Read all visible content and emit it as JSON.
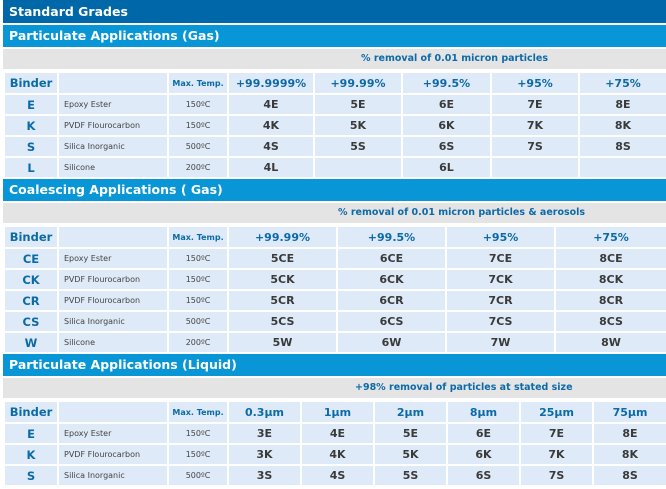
{
  "title": "Standard Grades",
  "sections": [
    {
      "name": "Particulate Applications (Gas)",
      "caption": "% removal of 0.01 micron particles",
      "headers": {
        "binder": "Binder",
        "description": "",
        "temp": "Max. Temp.",
        "columns": [
          "+99.9999%",
          "+99.99%",
          "+99.5%",
          "+95%",
          "+75%"
        ]
      },
      "rows": [
        {
          "binder": "E",
          "description": "Epoxy Ester",
          "temp": "150ºC",
          "grades": [
            "4E",
            "5E",
            "6E",
            "7E",
            "8E"
          ]
        },
        {
          "binder": "K",
          "description": "PVDF Flourocarbon",
          "temp": "150ºC",
          "grades": [
            "4K",
            "5K",
            "6K",
            "7K",
            "8K"
          ]
        },
        {
          "binder": "S",
          "description": "Silica Inorganic",
          "temp": "500ºC",
          "grades": [
            "4S",
            "5S",
            "6S",
            "7S",
            "8S"
          ]
        },
        {
          "binder": "L",
          "description": "Silicone",
          "temp": "200ºC",
          "grades": [
            "4L",
            "",
            "6L",
            "",
            ""
          ]
        }
      ]
    },
    {
      "name": "Coalescing Applications ( Gas)",
      "caption": "% removal of 0.01 micron particles & aerosols",
      "headers": {
        "binder": "Binder",
        "description": "",
        "temp": "Max. Temp.",
        "columns": [
          "+99.99%",
          "+99.5%",
          "+95%",
          "+75%"
        ]
      },
      "rows": [
        {
          "binder": "CE",
          "description": "Epoxy Ester",
          "temp": "150ºC",
          "grades": [
            "5CE",
            "6CE",
            "7CE",
            "8CE"
          ]
        },
        {
          "binder": "CK",
          "description": "PVDF Flourocarbon",
          "temp": "150ºC",
          "grades": [
            "5CK",
            "6CK",
            "7CK",
            "8CK"
          ]
        },
        {
          "binder": "CR",
          "description": "PVDF Flourocarbon",
          "temp": "150ºC",
          "grades": [
            "5CR",
            "6CR",
            "7CR",
            "8CR"
          ]
        },
        {
          "binder": "CS",
          "description": "Silica Inorganic",
          "temp": "500ºC",
          "grades": [
            "5CS",
            "6CS",
            "7CS",
            "8CS"
          ]
        },
        {
          "binder": "W",
          "description": "Silicone",
          "temp": "200ºC",
          "grades": [
            "5W",
            "6W",
            "7W",
            "8W"
          ]
        }
      ]
    },
    {
      "name": "Particulate Applications (Liquid)",
      "caption": "+98% removal of particles at stated size",
      "headers": {
        "binder": "Binder",
        "description": "",
        "temp": "Max. Temp.",
        "columns": [
          "0.3µm",
          "1µm",
          "2µm",
          "8µm",
          "25µm",
          "75µm"
        ]
      },
      "rows": [
        {
          "binder": "E",
          "description": "Epoxy Ester",
          "temp": "150ºC",
          "grades": [
            "3E",
            "4E",
            "5E",
            "6E",
            "7E",
            "8E"
          ]
        },
        {
          "binder": "K",
          "description": "PVDF Flourocarbon",
          "temp": "150ºC",
          "grades": [
            "3K",
            "4K",
            "5K",
            "6K",
            "7K",
            "8K"
          ]
        },
        {
          "binder": "S",
          "description": "Silica Inorganic",
          "temp": "500ºC",
          "grades": [
            "3S",
            "4S",
            "5S",
            "6S",
            "7S",
            "8S"
          ]
        }
      ]
    }
  ],
  "colors": {
    "title_bar": "#0067a8",
    "section_bar": "#0996d6",
    "caption_bg": "#e4e4e4",
    "cell_bg": "#deeaf7",
    "accent_text": "#0c6aa8",
    "grade_text": "#3a3a3a"
  }
}
